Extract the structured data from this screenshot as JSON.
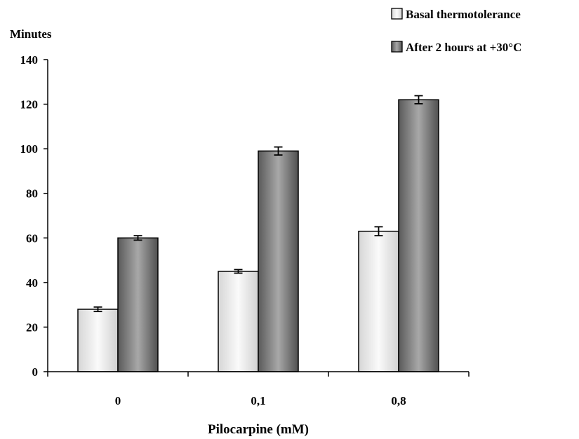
{
  "chart_data": {
    "type": "bar",
    "title": "",
    "ylabel": "Minutes",
    "xlabel": "Pilocarpine (mM)",
    "categories": [
      "0",
      "0,1",
      "0,8"
    ],
    "ylim": [
      0,
      140
    ],
    "yticks": [
      0,
      20,
      40,
      60,
      80,
      100,
      120,
      140
    ],
    "grid": false,
    "legend_position": "top-right",
    "series": [
      {
        "name": "Basal thermotolerance",
        "values": [
          28,
          45,
          63
        ],
        "errors": [
          1,
          0.8,
          2
        ],
        "color": "#e8e8e8"
      },
      {
        "name": "After 2 hours at +30°C",
        "values": [
          60,
          99,
          122
        ],
        "errors": [
          1,
          1.8,
          1.8
        ],
        "color": "#8c8c8c"
      }
    ]
  }
}
